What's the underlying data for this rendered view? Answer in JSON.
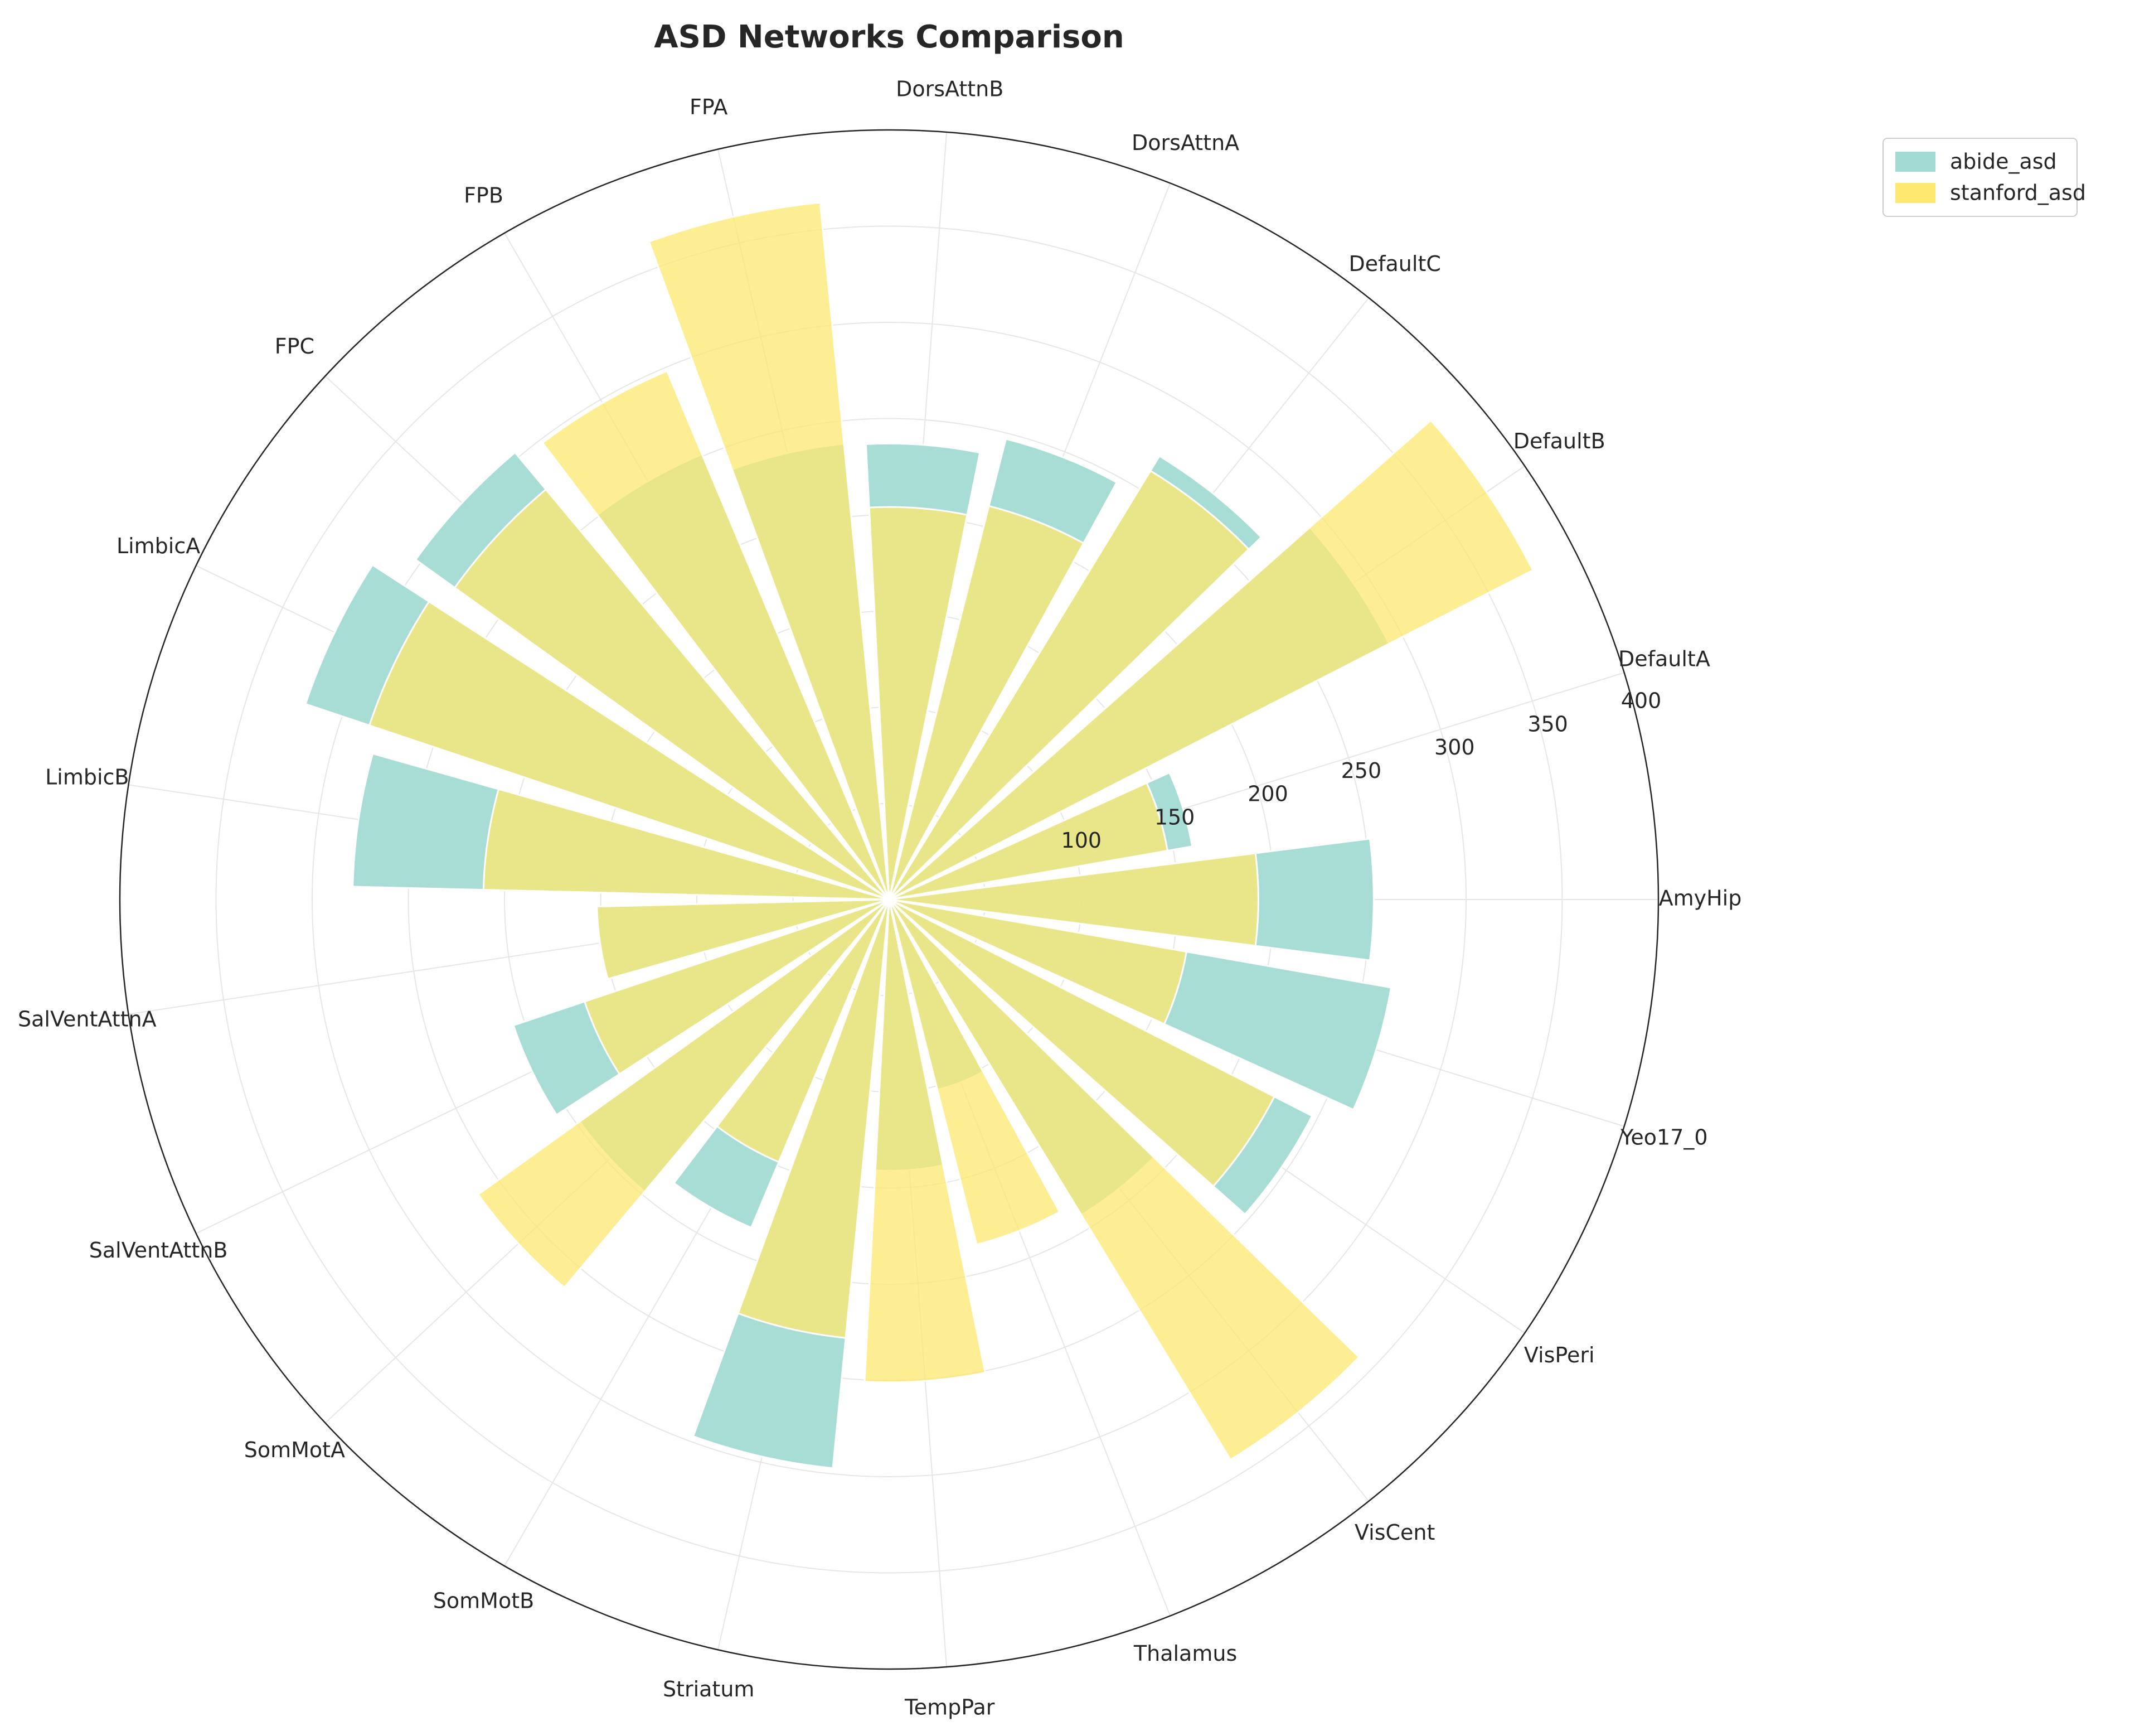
{
  "chart_data": {
    "type": "bar",
    "subtype": "polar",
    "title": "ASD Networks Comparison",
    "xlabel": "",
    "ylabel": "",
    "categories": [
      "AmyHip",
      "Yeo17_0",
      "VisPeri",
      "VisCent",
      "Thalamus",
      "TempPar",
      "Striatum",
      "SomMotB",
      "SomMotA",
      "SalVentAttnB",
      "SalVentAttnA",
      "LimbicB",
      "LimbicA",
      "FPC",
      "FPB",
      "FPA",
      "DorsAttnB",
      "DorsAttnA",
      "DefaultC",
      "DefaultB",
      "DefaultA"
    ],
    "category_order": "clockwise from 0 degrees (right)",
    "ylim": [
      0,
      400
    ],
    "r_ticks": [
      "100",
      "150",
      "200",
      "250",
      "300",
      "350",
      "400"
    ],
    "grid": true,
    "legend_position": "upper right, outside",
    "series": [
      {
        "name": "abide_asd",
        "color": "#a3dbd4",
        "values": [
          252,
          265,
          247,
          192,
          102,
          141,
          297,
          185,
          198,
          206,
          152,
          279,
          320,
          303,
          251,
          238,
          237,
          247,
          270,
          292,
          160
        ]
      },
      {
        "name": "stanford_asd",
        "color": "#fee86f",
        "values": [
          192,
          157,
          225,
          341,
          185,
          251,
          229,
          148,
          263,
          167,
          152,
          211,
          285,
          278,
          298,
          364,
          204,
          211,
          261,
          376,
          147
        ]
      }
    ]
  }
}
